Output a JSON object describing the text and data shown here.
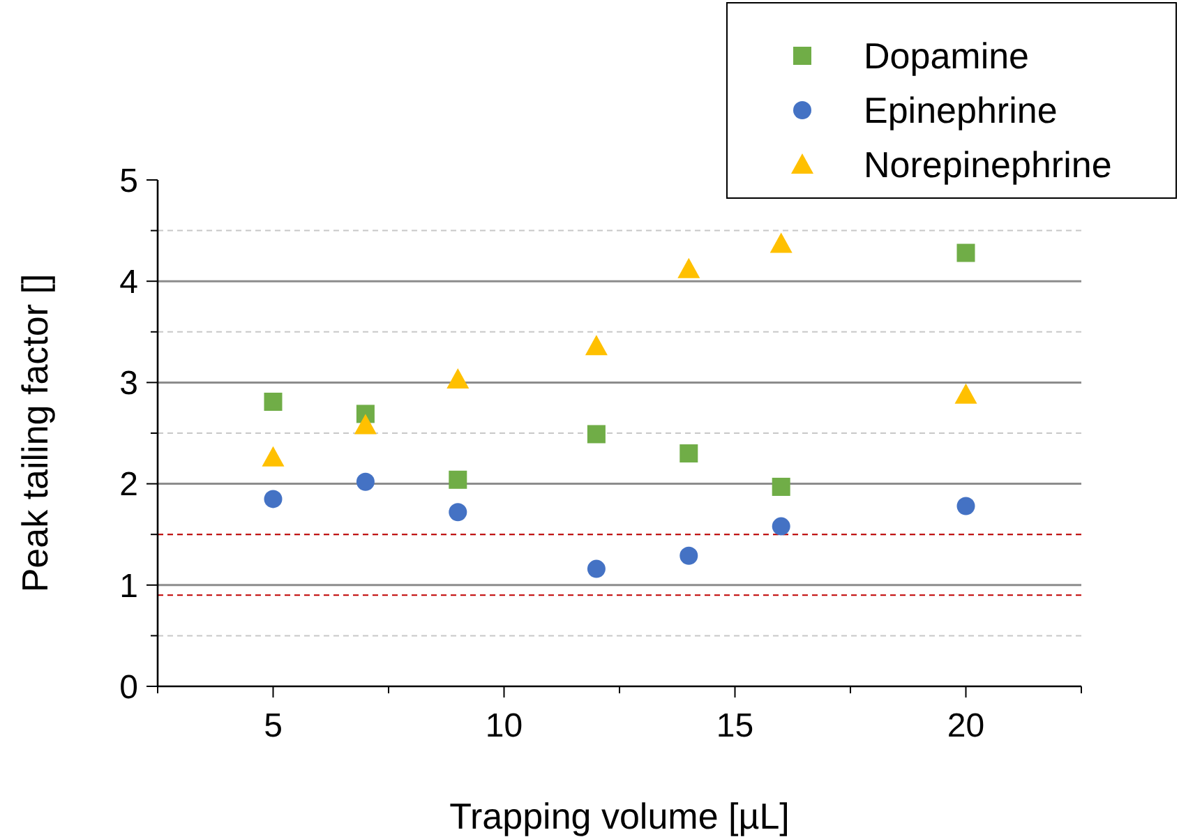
{
  "chart_data": {
    "type": "scatter",
    "xlabel": "Trapping volume [µL]",
    "ylabel": "Peak tailing factor []",
    "xlim": [
      2.5,
      22.5
    ],
    "xticks": [
      {
        "value": 2.5,
        "label": null
      },
      5,
      {
        "value": 7.5,
        "label": null
      },
      10,
      {
        "value": 12.5,
        "label": null
      },
      15,
      {
        "value": 17.5,
        "label": null
      },
      20,
      {
        "value": 22.5,
        "label": null
      }
    ],
    "ylim": [
      0,
      5
    ],
    "yticks": [
      0,
      {
        "value": 0.5,
        "label": null
      },
      1,
      {
        "value": 1.5,
        "label": null
      },
      2,
      {
        "value": 2.5,
        "label": null
      },
      3,
      {
        "value": 3.5,
        "label": null
      },
      4,
      {
        "value": 4.5,
        "label": null
      },
      5
    ],
    "grid": "y",
    "legend": "top right",
    "ref_lines": [
      {
        "axis": "y",
        "value": 1.5,
        "color": "#c00000",
        "line_style": "dashed"
      },
      {
        "axis": "y",
        "value": 0.9,
        "color": "#c00000",
        "line_style": "dashed"
      }
    ],
    "series": [
      {
        "name": "Dopamine",
        "color": "#70ad47",
        "marker": "square",
        "x": [
          5,
          7,
          9,
          12,
          14,
          16,
          20
        ],
        "values": [
          2.81,
          2.69,
          2.04,
          2.49,
          2.3,
          1.97,
          4.28
        ]
      },
      {
        "name": "Epinephrine",
        "color": "#4472c4",
        "marker": "circle",
        "x": [
          5,
          7,
          9,
          12,
          14,
          16,
          20
        ],
        "values": [
          1.85,
          2.02,
          1.72,
          1.16,
          1.29,
          1.58,
          1.78
        ]
      },
      {
        "name": "Norepinephrine",
        "color": "#ffc000",
        "marker": "triangle",
        "x": [
          5,
          7,
          9,
          12,
          14,
          16,
          20
        ],
        "values": [
          2.26,
          2.58,
          3.03,
          3.36,
          4.12,
          4.37,
          2.88
        ]
      }
    ]
  }
}
